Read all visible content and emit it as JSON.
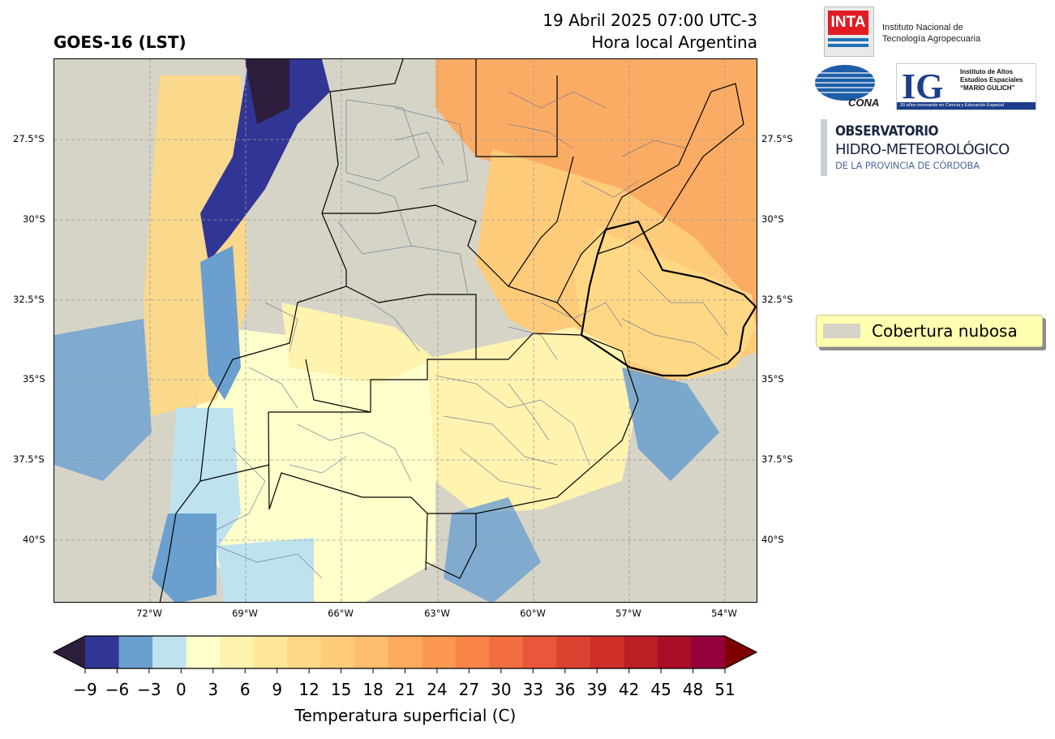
{
  "header": {
    "title": "GOES-16 (LST)",
    "datetime_line1": "19 Abril 2025 07:00 UTC-3",
    "datetime_line2": "Hora local Argentina"
  },
  "map": {
    "lat_labels": [
      "27.5°S",
      "30°S",
      "32.5°S",
      "35°S",
      "37.5°S",
      "40°S"
    ],
    "lon_labels": [
      "72°W",
      "69°W",
      "66°W",
      "63°W",
      "60°W",
      "57°W",
      "54°W"
    ],
    "grid": true,
    "cloud_color": "#d6d4c7"
  },
  "legend": {
    "label": "Cobertura nubosa",
    "swatch_color": "#d6d4c7",
    "background": "#ffffb0"
  },
  "colorbar": {
    "label": "Temperatura superficial (C)",
    "ticks": [
      "−9",
      "−6",
      "−3",
      "0",
      "3",
      "6",
      "9",
      "12",
      "15",
      "18",
      "21",
      "24",
      "27",
      "30",
      "33",
      "36",
      "39",
      "42",
      "45",
      "48",
      "51"
    ],
    "under_color": "#2d1e3e",
    "over_color": "#7f0000",
    "colors": [
      "#313695",
      "#6a9fcf",
      "#bfe2ef",
      "#ffffcc",
      "#fff3b0",
      "#ffe799",
      "#fed885",
      "#fecb7a",
      "#febd6e",
      "#fdaa5f",
      "#fd9850",
      "#f88447",
      "#f26d40",
      "#e9573a",
      "#dd4231",
      "#cf2f28",
      "#bd1e26",
      "#a80f26",
      "#93003a"
    ]
  },
  "logos": {
    "inta_mark": "INTA",
    "inta_text_1": "Instituto Nacional de",
    "inta_text_2": "Tecnología Agropecuaria",
    "conae": "CONAE",
    "ig_mark": "IG",
    "ig_text_1": "Instituto de Altos",
    "ig_text_2": "Estudios Espaciales",
    "ig_text_3": "“MARIO GULICH”",
    "ig_strip": "20 años innovando en Ciencia y Educación Espacial",
    "obs_1": "OBSERVATORIO",
    "obs_2": "HIDRO-METEOROLÓGICO",
    "obs_3": "DE LA PROVINCIA DE CÓRDOBA"
  }
}
